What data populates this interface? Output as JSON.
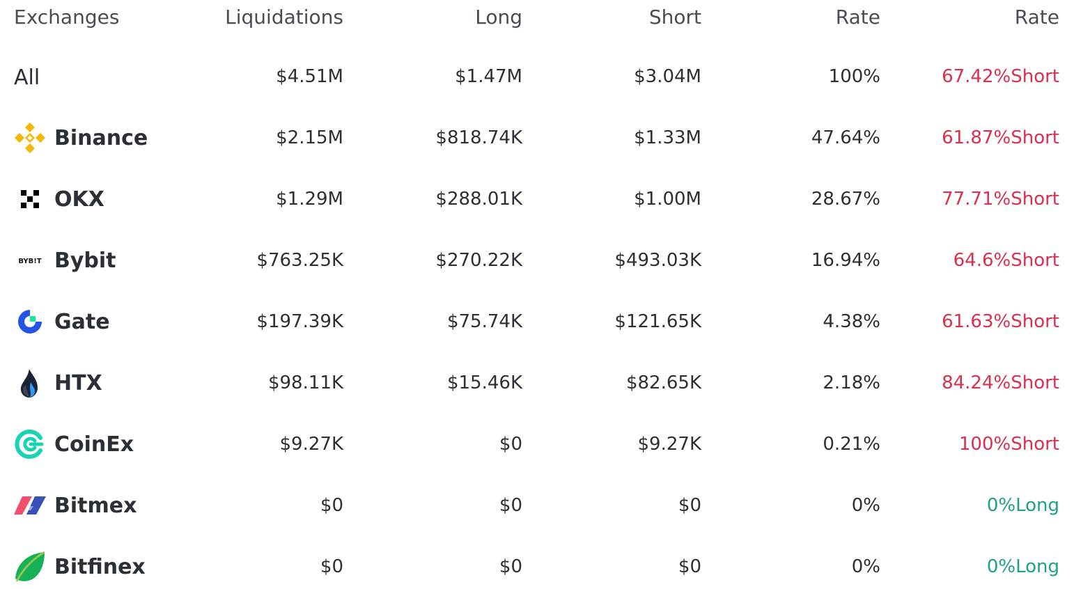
{
  "headers": {
    "exchanges": "Exchanges",
    "liquidations": "Liquidations",
    "long": "Long",
    "short": "Short",
    "rate": "Rate",
    "rate2": "Rate"
  },
  "colors": {
    "short": "#d9304e",
    "long": "#20a08b",
    "text": "#2b2f36"
  },
  "rows": [
    {
      "name": "All",
      "liquidations": "$4.51M",
      "long": "$1.47M",
      "short": "$3.04M",
      "rate": "100%",
      "ratio": "67.42%Short",
      "side": "short",
      "icon": ""
    },
    {
      "name": "Binance",
      "liquidations": "$2.15M",
      "long": "$818.74K",
      "short": "$1.33M",
      "rate": "47.64%",
      "ratio": "61.87%Short",
      "side": "short",
      "icon": "binance-icon"
    },
    {
      "name": "OKX",
      "liquidations": "$1.29M",
      "long": "$288.01K",
      "short": "$1.00M",
      "rate": "28.67%",
      "ratio": "77.71%Short",
      "side": "short",
      "icon": "okx-icon"
    },
    {
      "name": "Bybit",
      "liquidations": "$763.25K",
      "long": "$270.22K",
      "short": "$493.03K",
      "rate": "16.94%",
      "ratio": "64.6%Short",
      "side": "short",
      "icon": "bybit-icon",
      "logo_text": "BYB!T"
    },
    {
      "name": "Gate",
      "liquidations": "$197.39K",
      "long": "$75.74K",
      "short": "$121.65K",
      "rate": "4.38%",
      "ratio": "61.63%Short",
      "side": "short",
      "icon": "gate-icon"
    },
    {
      "name": "HTX",
      "liquidations": "$98.11K",
      "long": "$15.46K",
      "short": "$82.65K",
      "rate": "2.18%",
      "ratio": "84.24%Short",
      "side": "short",
      "icon": "htx-icon"
    },
    {
      "name": "CoinEx",
      "liquidations": "$9.27K",
      "long": "$0",
      "short": "$9.27K",
      "rate": "0.21%",
      "ratio": "100%Short",
      "side": "short",
      "icon": "coinex-icon"
    },
    {
      "name": "Bitmex",
      "liquidations": "$0",
      "long": "$0",
      "short": "$0",
      "rate": "0%",
      "ratio": "0%Long",
      "side": "long",
      "icon": "bitmex-icon"
    },
    {
      "name": "Bitfinex",
      "liquidations": "$0",
      "long": "$0",
      "short": "$0",
      "rate": "0%",
      "ratio": "0%Long",
      "side": "long",
      "icon": "bitfinex-icon"
    }
  ]
}
